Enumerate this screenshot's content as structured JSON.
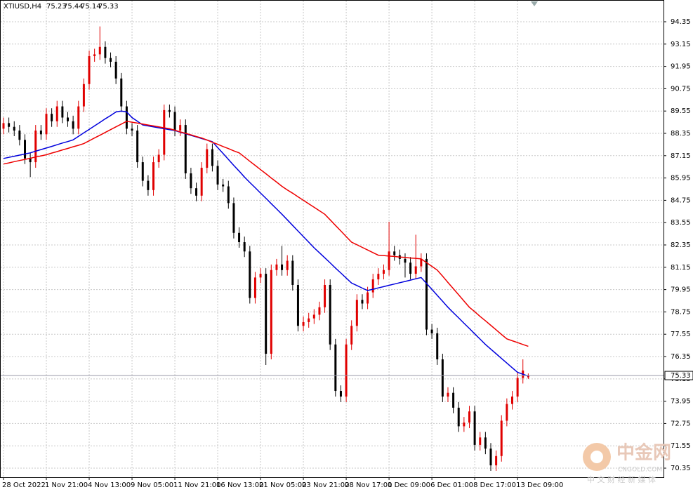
{
  "chart_data": {
    "type": "candlestick",
    "symbol": "XTIUSD,H4",
    "watermark_title": "中金网",
    "watermark_site": "CNGOLD.COM",
    "watermark_slogan": "中 文 财 经 新 媒 体",
    "bull_color": "#e00000",
    "bear_color": "#000000",
    "grid": true,
    "ylim": [
      69.86,
      95.52
    ],
    "yticks": [
      94.35,
      93.15,
      91.95,
      90.75,
      89.55,
      88.35,
      87.15,
      85.95,
      84.75,
      83.55,
      82.35,
      81.15,
      79.95,
      78.75,
      77.55,
      76.35,
      75.15,
      73.95,
      72.75,
      71.55,
      70.35
    ],
    "categories": [
      "28 Oct 2022",
      null,
      null,
      null,
      null,
      null,
      null,
      null,
      "1 Nov 21:00",
      null,
      null,
      null,
      null,
      null,
      null,
      null,
      "4 Nov 13:00",
      null,
      null,
      null,
      null,
      null,
      null,
      null,
      "9 Nov 05:00",
      null,
      null,
      null,
      null,
      null,
      null,
      null,
      "11 Nov 21:00",
      null,
      null,
      null,
      null,
      null,
      null,
      null,
      "16 Nov 13:00",
      null,
      null,
      null,
      null,
      null,
      null,
      null,
      "21 Nov 05:00",
      null,
      null,
      null,
      null,
      null,
      null,
      null,
      "23 Nov 21:00",
      null,
      null,
      null,
      null,
      null,
      null,
      null,
      "28 Nov 17:00",
      null,
      null,
      null,
      null,
      null,
      null,
      null,
      "1 Dec 09:00",
      null,
      null,
      null,
      null,
      null,
      null,
      null,
      "6 Dec 01:00",
      null,
      null,
      null,
      null,
      null,
      null,
      null,
      "8 Dec 17:00",
      null,
      null,
      null,
      null,
      null,
      null,
      null,
      "13 Dec 09:00",
      null,
      null
    ],
    "open": [
      88.6,
      88.9,
      88.7,
      88.5,
      88.0,
      87.0,
      86.8,
      88.5,
      88.3,
      89.4,
      89.0,
      89.8,
      89.2,
      89.0,
      88.6,
      89.8,
      91.0,
      92.5,
      92.6,
      93.0,
      92.4,
      92.2,
      91.3,
      89.8,
      88.6,
      88.5,
      86.8,
      85.8,
      85.3,
      86.8,
      87.2,
      89.6,
      89.5,
      88.5,
      88.8,
      86.2,
      85.4,
      85.0,
      86.5,
      87.5,
      86.6,
      85.6,
      85.5,
      84.6,
      83.0,
      82.5,
      82.0,
      79.5,
      80.6,
      80.8,
      76.5,
      81.0,
      81.3,
      81.0,
      81.5,
      80.2,
      78.0,
      78.2,
      78.4,
      78.6,
      79.0,
      80.2,
      77.0,
      74.5,
      74.2,
      77.0,
      78.0,
      79.4,
      79.2,
      79.8,
      80.5,
      80.8,
      81.0,
      82.0,
      81.8,
      81.6,
      81.4,
      80.8,
      81.2,
      81.6,
      77.8,
      77.6,
      76.2,
      74.2,
      74.4,
      73.6,
      72.6,
      72.8,
      73.4,
      71.6,
      72.0,
      71.4,
      70.5,
      71.0,
      72.9,
      73.8,
      74.2,
      75.2,
      75.23
    ],
    "high": [
      89.2,
      89.2,
      89.0,
      88.8,
      88.3,
      87.3,
      88.8,
      88.8,
      89.7,
      89.7,
      90.1,
      90.1,
      89.5,
      89.3,
      90.1,
      91.3,
      92.8,
      92.9,
      94.1,
      93.3,
      92.7,
      92.5,
      91.6,
      90.1,
      88.9,
      88.8,
      87.1,
      86.1,
      87.1,
      87.5,
      89.9,
      89.9,
      89.8,
      89.1,
      89.1,
      86.5,
      85.7,
      86.8,
      87.8,
      87.8,
      86.9,
      85.9,
      85.8,
      84.9,
      83.3,
      82.8,
      82.3,
      80.9,
      81.1,
      81.1,
      81.3,
      81.6,
      82.3,
      81.8,
      81.8,
      80.5,
      78.5,
      78.7,
      78.9,
      79.3,
      80.5,
      80.5,
      77.3,
      74.8,
      77.3,
      78.3,
      79.7,
      79.7,
      80.1,
      80.8,
      81.1,
      81.3,
      83.6,
      82.3,
      82.1,
      81.9,
      81.7,
      82.9,
      81.9,
      81.9,
      78.1,
      77.9,
      76.5,
      74.7,
      74.7,
      73.9,
      73.1,
      73.7,
      73.7,
      72.3,
      72.3,
      71.7,
      71.3,
      73.2,
      74.1,
      74.5,
      75.5,
      76.2,
      75.44
    ],
    "low": [
      88.3,
      88.4,
      88.2,
      87.7,
      86.7,
      86.0,
      86.5,
      88.0,
      88.0,
      88.7,
      88.7,
      88.9,
      88.7,
      88.3,
      88.3,
      89.5,
      90.7,
      92.2,
      92.3,
      92.1,
      91.9,
      91.0,
      89.5,
      88.3,
      88.2,
      86.5,
      85.5,
      85.0,
      85.0,
      86.5,
      86.9,
      89.2,
      88.2,
      88.2,
      85.9,
      85.1,
      84.7,
      84.7,
      86.2,
      86.3,
      85.3,
      85.2,
      84.3,
      82.7,
      82.2,
      81.7,
      79.2,
      79.2,
      80.3,
      75.9,
      76.2,
      80.7,
      80.7,
      80.7,
      79.9,
      77.7,
      77.7,
      77.9,
      78.1,
      78.3,
      78.7,
      76.7,
      74.2,
      73.9,
      73.9,
      76.7,
      77.7,
      78.9,
      78.9,
      79.5,
      80.2,
      80.5,
      80.7,
      81.5,
      81.3,
      80.6,
      80.5,
      80.5,
      80.9,
      77.5,
      77.3,
      75.9,
      73.9,
      73.9,
      73.3,
      72.3,
      72.3,
      72.5,
      71.3,
      71.3,
      71.1,
      70.2,
      70.2,
      70.7,
      72.6,
      73.5,
      73.9,
      74.9,
      75.14
    ],
    "close": [
      88.9,
      88.7,
      88.5,
      88.0,
      87.0,
      86.8,
      88.5,
      88.3,
      89.4,
      89.0,
      89.8,
      89.2,
      89.0,
      88.6,
      89.8,
      91.0,
      92.5,
      92.6,
      93.0,
      92.4,
      92.2,
      91.3,
      89.8,
      88.6,
      88.5,
      86.8,
      85.8,
      85.3,
      86.8,
      87.2,
      89.6,
      89.5,
      88.5,
      88.8,
      86.2,
      85.4,
      85.0,
      86.5,
      87.5,
      86.6,
      85.6,
      85.5,
      84.6,
      83.0,
      82.5,
      82.0,
      79.5,
      80.6,
      80.8,
      76.5,
      81.0,
      81.3,
      81.0,
      81.5,
      80.2,
      78.0,
      78.2,
      78.4,
      78.6,
      79.0,
      80.2,
      77.0,
      74.5,
      74.2,
      77.0,
      78.0,
      79.4,
      79.2,
      79.8,
      80.5,
      80.8,
      81.0,
      82.0,
      81.8,
      81.6,
      81.4,
      80.8,
      81.2,
      81.6,
      77.8,
      77.6,
      76.2,
      74.2,
      74.4,
      73.6,
      72.6,
      72.8,
      73.4,
      71.6,
      72.0,
      71.4,
      70.5,
      71.0,
      72.9,
      73.8,
      74.2,
      75.2,
      75.6,
      75.33
    ],
    "series": [
      {
        "color": "#0000dd",
        "values": [
          87.0,
          87.06,
          87.12,
          87.18,
          87.24,
          87.3,
          87.39,
          87.48,
          87.56,
          87.65,
          87.74,
          87.83,
          87.91,
          88.0,
          88.19,
          88.38,
          88.56,
          88.75,
          88.94,
          89.13,
          89.31,
          89.5,
          89.55,
          89.5,
          89.2,
          89.0,
          88.8,
          88.75,
          88.7,
          88.65,
          88.6,
          88.55,
          88.5,
          88.41,
          88.33,
          88.24,
          88.16,
          88.07,
          87.99,
          87.9,
          87.58,
          87.27,
          86.95,
          86.63,
          86.32,
          86.0,
          85.71,
          85.43,
          85.14,
          84.86,
          84.57,
          84.29,
          84.0,
          83.7,
          83.4,
          83.1,
          82.8,
          82.5,
          82.2,
          81.93,
          81.66,
          81.39,
          81.11,
          80.84,
          80.57,
          80.3,
          80.17,
          80.03,
          79.9,
          79.97,
          80.04,
          80.11,
          80.18,
          80.25,
          80.32,
          80.39,
          80.46,
          80.53,
          80.6,
          80.28,
          79.96,
          79.64,
          79.32,
          79.0,
          78.71,
          78.43,
          78.14,
          77.86,
          77.57,
          77.29,
          77.0,
          76.75,
          76.5,
          76.25,
          76.0,
          75.75,
          75.5,
          75.4,
          75.3
        ]
      },
      {
        "color": "#ee0000",
        "values": [
          86.7,
          86.76,
          86.83,
          86.89,
          86.95,
          87.01,
          87.08,
          87.14,
          87.2,
          87.29,
          87.37,
          87.46,
          87.54,
          87.63,
          87.71,
          87.8,
          87.95,
          88.1,
          88.25,
          88.4,
          88.55,
          88.7,
          88.85,
          89.0,
          88.95,
          88.9,
          88.85,
          88.8,
          88.75,
          88.7,
          88.65,
          88.6,
          88.52,
          88.43,
          88.35,
          88.27,
          88.18,
          88.1,
          87.99,
          87.87,
          87.76,
          87.64,
          87.53,
          87.41,
          87.3,
          87.08,
          86.85,
          86.63,
          86.4,
          86.18,
          85.95,
          85.73,
          85.5,
          85.31,
          85.13,
          84.94,
          84.75,
          84.56,
          84.38,
          84.19,
          84.0,
          83.7,
          83.4,
          83.1,
          82.8,
          82.5,
          82.36,
          82.22,
          82.08,
          81.94,
          81.8,
          81.78,
          81.75,
          81.73,
          81.7,
          81.68,
          81.65,
          81.63,
          81.6,
          81.4,
          81.2,
          81.0,
          80.67,
          80.33,
          80.0,
          79.67,
          79.33,
          79.0,
          78.76,
          78.51,
          78.27,
          78.03,
          77.79,
          77.54,
          77.3,
          77.2,
          77.1,
          77.0,
          76.9
        ]
      }
    ]
  }
}
